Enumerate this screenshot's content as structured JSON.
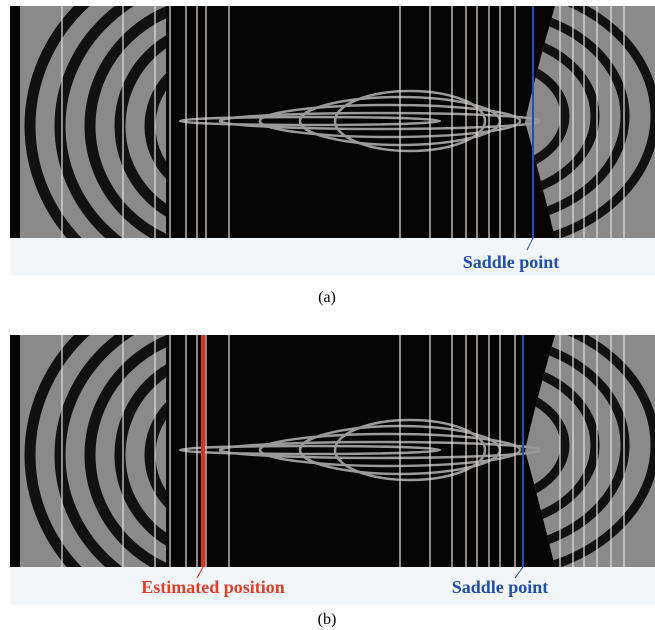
{
  "panels": [
    {
      "labels": [
        {
          "text": "Saddle point"
        }
      ],
      "caption": "(a)"
    },
    {
      "labels": [
        {
          "text": "Estimated position"
        },
        {
          "text": "Saddle point"
        }
      ],
      "caption": "(b)"
    }
  ]
}
